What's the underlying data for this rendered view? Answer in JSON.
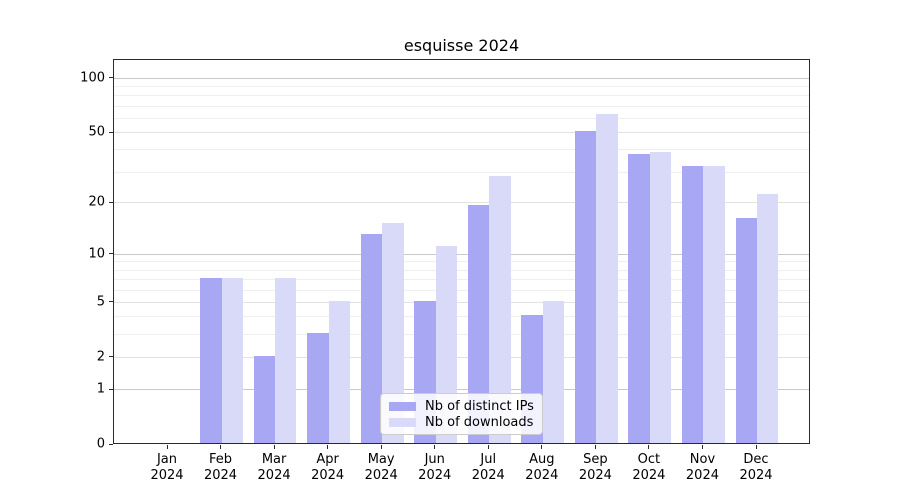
{
  "title": "esquisse 2024",
  "chart_data": {
    "type": "bar",
    "title": "esquisse 2024",
    "categories": [
      "Jan",
      "Feb",
      "Mar",
      "Apr",
      "May",
      "Jun",
      "Jul",
      "Aug",
      "Sep",
      "Oct",
      "Nov",
      "Dec"
    ],
    "year": "2024",
    "series": [
      {
        "name": "Nb of distinct IPs",
        "color": "#a7a7f3",
        "values": [
          0,
          7,
          2,
          3,
          13,
          5,
          19,
          4,
          50,
          37,
          32,
          16
        ]
      },
      {
        "name": "Nb of downloads",
        "color": "#d9d9f8",
        "values": [
          0,
          7,
          7,
          5,
          15,
          11,
          28,
          5,
          62,
          38,
          32,
          22
        ]
      }
    ],
    "yticks": [
      0,
      1,
      2,
      5,
      10,
      20,
      50,
      100
    ],
    "major_gridlines": [
      1,
      10,
      100
    ],
    "minor_yticks": [
      3,
      4,
      6,
      7,
      8,
      9,
      30,
      40,
      60,
      70,
      80,
      90
    ],
    "scale": "log1p",
    "ylim": [
      0,
      127
    ],
    "grid": "on",
    "legend_position": "lower center",
    "colors": {
      "major_grid": "#c9c9c9",
      "mid_grid": "#e2e2e2",
      "minor_grid": "#efefef",
      "spine": "#2a2a2a",
      "text": "#000000"
    }
  }
}
